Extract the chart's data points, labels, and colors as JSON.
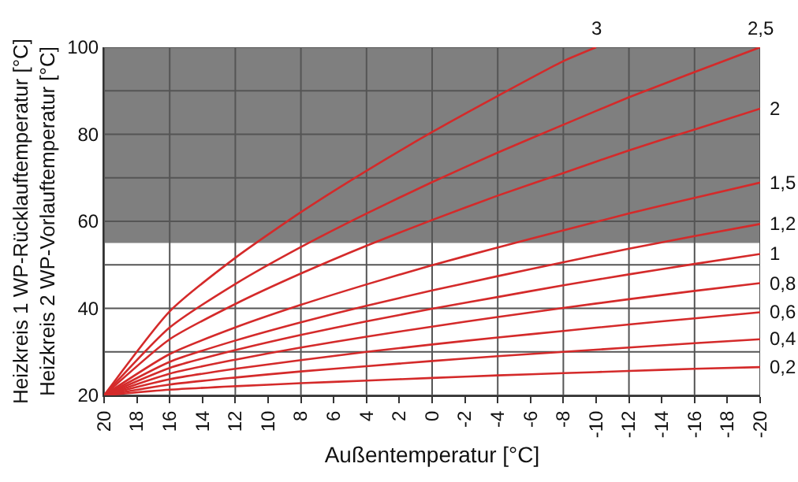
{
  "chart_data": {
    "type": "line",
    "xlabel": "Außentemperatur [°C]",
    "ylabel": "Heizkreis 1 WP-Rücklauftemperatur [°C]\nHeizkreis 2 WP-Vorlauftemperatur [°C]",
    "x": [
      20,
      16,
      12,
      8,
      4,
      0,
      -4,
      -8,
      -12,
      -16,
      -20
    ],
    "series": [
      {
        "name": "3",
        "color": "#d42a2a",
        "x": [
          20,
          16,
          12,
          8,
          4,
          0,
          -4,
          -8,
          -10
        ],
        "values": [
          20,
          39.3,
          51.6,
          62.1,
          71.6,
          80.5,
          88.8,
          96.8,
          100
        ]
      },
      {
        "name": "2,5",
        "color": "#d42a2a",
        "values": [
          20,
          35.6,
          45.6,
          54.1,
          61.8,
          69,
          75.8,
          82.2,
          88.5,
          94.3,
          100
        ]
      },
      {
        "name": "2",
        "color": "#d42a2a",
        "values": [
          20,
          32.9,
          41,
          48,
          54.4,
          60.3,
          65.9,
          71.1,
          76.3,
          81.1,
          85.9
        ]
      },
      {
        "name": "1,5",
        "color": "#d42a2a",
        "values": [
          20,
          29.5,
          35.6,
          40.8,
          45.5,
          49.9,
          54,
          57.9,
          61.8,
          65.4,
          68.9
        ]
      },
      {
        "name": "1,2",
        "color": "#d42a2a",
        "values": [
          20,
          27.7,
          32.6,
          36.8,
          40.6,
          44.1,
          47.4,
          50.6,
          53.7,
          56.6,
          59.4
        ]
      },
      {
        "name": "1",
        "color": "#d42a2a",
        "values": [
          20,
          26.3,
          30.4,
          33.9,
          37,
          39.9,
          42.6,
          45.3,
          47.8,
          50.2,
          52.5
        ]
      },
      {
        "name": "0,8",
        "color": "#d42a2a",
        "values": [
          20,
          25,
          28.2,
          31,
          33.5,
          35.8,
          38,
          40.1,
          42.1,
          44,
          45.8
        ]
      },
      {
        "name": "0,6",
        "color": "#d42a2a",
        "values": [
          20,
          23.7,
          26.1,
          28.1,
          30,
          31.7,
          33.3,
          34.8,
          36.3,
          37.7,
          39.1
        ]
      },
      {
        "name": "0,4",
        "color": "#d42a2a",
        "values": [
          20,
          22.5,
          24.1,
          25.5,
          26.7,
          27.9,
          29,
          30,
          31,
          32,
          32.9
        ]
      },
      {
        "name": "0,2",
        "color": "#d42a2a",
        "values": [
          20,
          21.3,
          22.1,
          22.8,
          23.4,
          24,
          24.6,
          25.1,
          25.6,
          26.1,
          26.5
        ]
      }
    ],
    "xlim": [
      20,
      -20
    ],
    "xticks": [
      20,
      18,
      16,
      14,
      12,
      10,
      8,
      6,
      4,
      2,
      0,
      -2,
      -4,
      -6,
      -8,
      -10,
      -12,
      -14,
      -16,
      -18,
      -20
    ],
    "ylim": [
      20,
      100
    ],
    "yticks": [
      20,
      {
        "value": 30,
        "label": null
      },
      40,
      {
        "value": 50,
        "label": null
      },
      60,
      {
        "value": 70,
        "label": null
      },
      80,
      {
        "value": 90,
        "label": null
      },
      100
    ],
    "bands": [
      {
        "axis": "y",
        "from": 55,
        "to": 100,
        "color": "#7f7f7f"
      }
    ],
    "grid": true,
    "legend": false,
    "marker": "none",
    "line_style": "solid"
  }
}
